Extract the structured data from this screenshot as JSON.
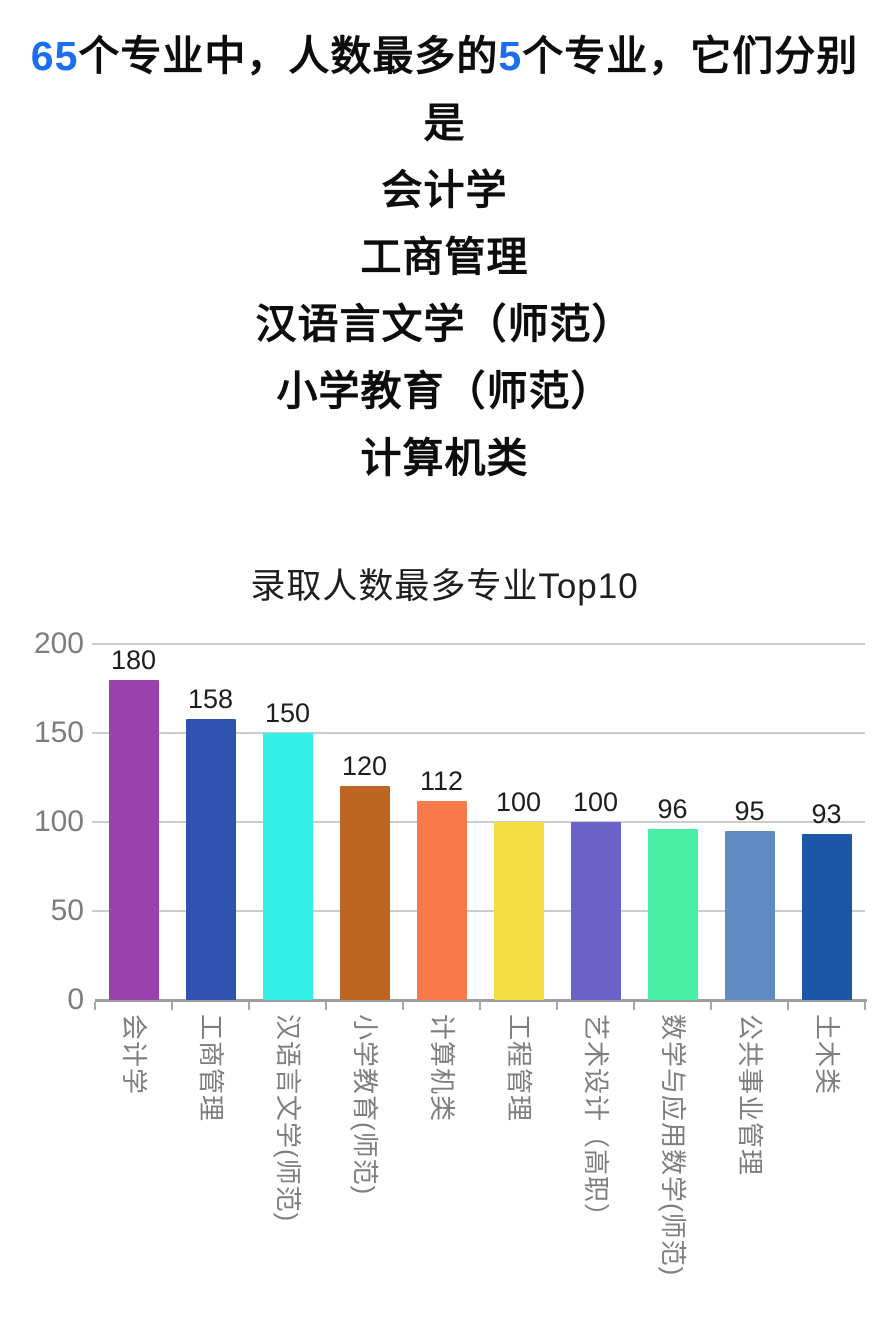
{
  "header": {
    "line1_num1": "65",
    "line1_mid": "个专业中，人数最多的",
    "line1_num2": "5",
    "line1_end": "个专业，它们分别",
    "line2": "是",
    "top5": [
      "会计学",
      "工商管理",
      "汉语言文学（师范）",
      "小学教育（师范）",
      "计算机类"
    ],
    "accent_color": "#1b6ef0",
    "text_color": "#0d0d0d"
  },
  "chart_data": {
    "type": "bar",
    "title": "录取人数最多专业Top10",
    "categories": [
      "会计学",
      "工商管理",
      "汉语言文学(师范)",
      "小学教育(师范)",
      "计算机类",
      "工程管理",
      "艺术设计（高职）",
      "数学与应用数学(师范)",
      "公共事业管理",
      "土木类"
    ],
    "values": [
      180,
      158,
      150,
      120,
      112,
      100,
      100,
      96,
      95,
      93
    ],
    "bar_colors": [
      "#9a41ad",
      "#2f52ae",
      "#32f0e8",
      "#bd6522",
      "#f87a4b",
      "#f5de44",
      "#6b62c8",
      "#49efa5",
      "#5e8bc2",
      "#1c56a9"
    ],
    "xlabel": "",
    "ylabel": "",
    "ylim": [
      0,
      200
    ],
    "yticks": [
      0,
      50,
      100,
      150,
      200
    ],
    "grid": true,
    "legend": false,
    "value_labels": true,
    "x_label_rotation_deg": 90,
    "grid_color": "#cccccc",
    "axis_color": "#9e9e9e",
    "tick_color": "#a8a8a8",
    "y_tick_label_color": "#7d7d7d",
    "x_tick_label_color": "#7e7e7e",
    "value_label_color": "#1e1e1e"
  }
}
